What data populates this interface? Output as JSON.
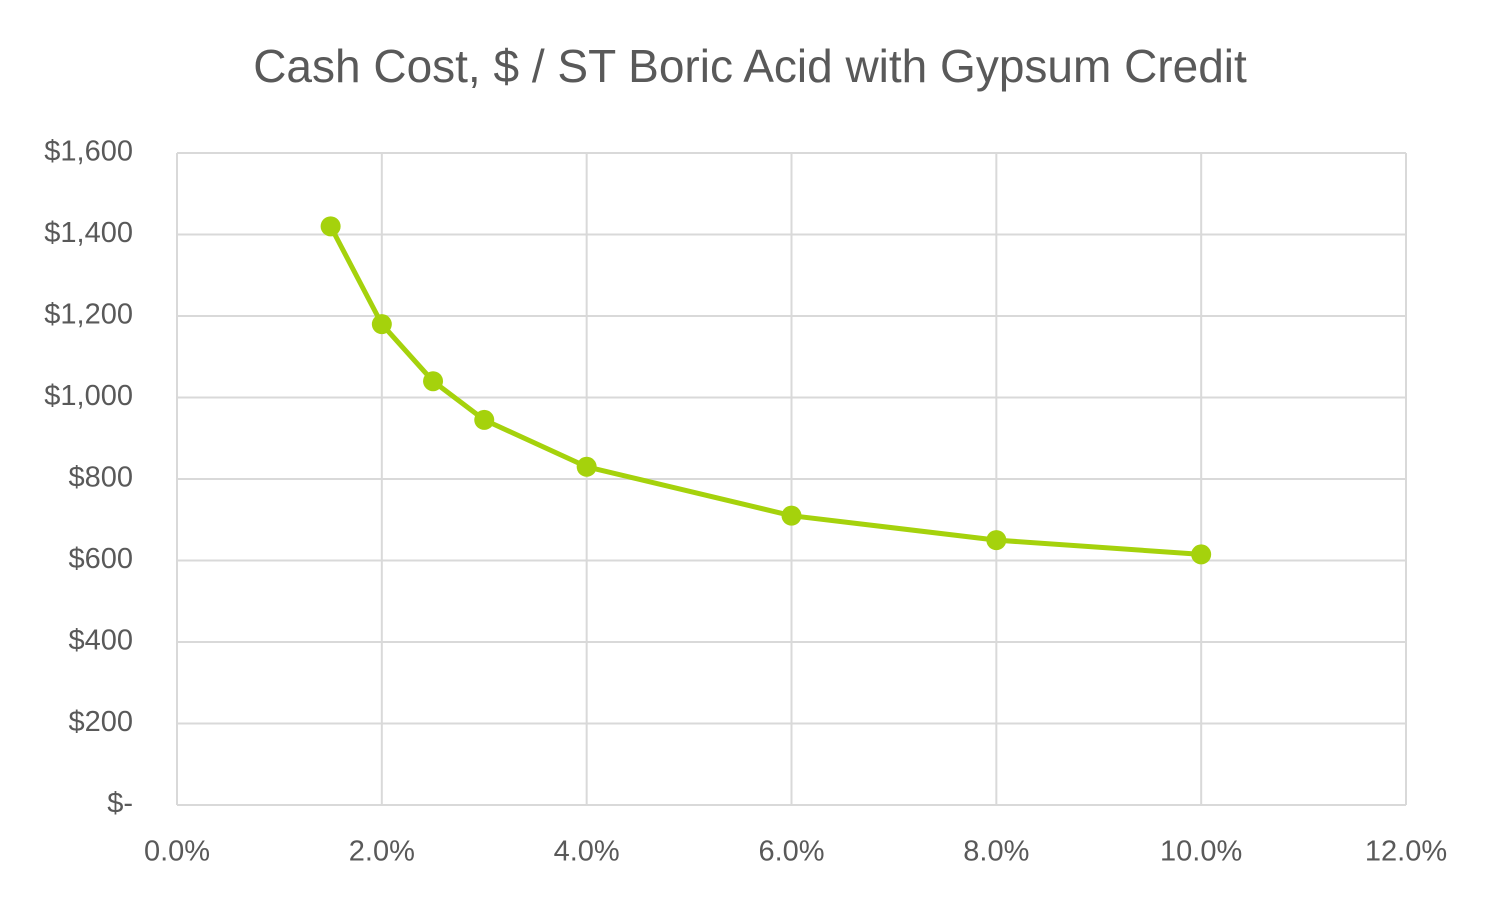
{
  "chart_data": {
    "type": "line",
    "title": "Cash Cost, $ / ST Boric Acid with Gypsum Credit",
    "x": [
      1.5,
      2.0,
      2.5,
      3.0,
      4.0,
      6.0,
      8.0,
      10.0
    ],
    "series": [
      {
        "color": "#a5d20c",
        "values": [
          1420,
          1180,
          1040,
          945,
          830,
          710,
          650,
          615
        ]
      }
    ],
    "xlim": [
      0,
      12
    ],
    "xticks": [
      {
        "value": 0,
        "label": "0.0%"
      },
      {
        "value": 2,
        "label": "2.0%"
      },
      {
        "value": 4,
        "label": "4.0%"
      },
      {
        "value": 6,
        "label": "6.0%"
      },
      {
        "value": 8,
        "label": "8.0%"
      },
      {
        "value": 10,
        "label": "10.0%"
      },
      {
        "value": 12,
        "label": "12.0%"
      }
    ],
    "ylim": [
      0,
      1600
    ],
    "yticks": [
      {
        "value": 0,
        "label": "$-"
      },
      {
        "value": 200,
        "label": "$200"
      },
      {
        "value": 400,
        "label": "$400"
      },
      {
        "value": 600,
        "label": "$600"
      },
      {
        "value": 800,
        "label": "$800"
      },
      {
        "value": 1000,
        "label": "$1,000"
      },
      {
        "value": 1200,
        "label": "$1,200"
      },
      {
        "value": 1400,
        "label": "$1,400"
      },
      {
        "value": 1600,
        "label": "$1,600"
      }
    ],
    "grid": true
  }
}
